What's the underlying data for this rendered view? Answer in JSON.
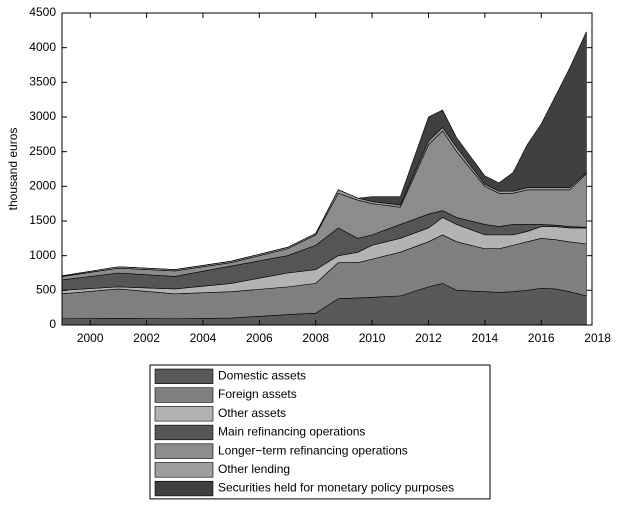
{
  "chart_data": {
    "type": "stacked_area",
    "y_label": "thousand euros",
    "x": [
      1999,
      2001,
      2003,
      2005,
      2007,
      2008,
      2008.8,
      2009.5,
      2010,
      2011,
      2012,
      2012.5,
      2013,
      2014,
      2014.5,
      2015,
      2015.5,
      2016,
      2016.5,
      2017,
      2017.6
    ],
    "series": [
      {
        "name": "Domestic assets",
        "color": "#595959",
        "values": [
          90,
          95,
          90,
          100,
          150,
          170,
          380,
          390,
          400,
          420,
          550,
          600,
          500,
          480,
          470,
          480,
          500,
          530,
          520,
          480,
          420
        ]
      },
      {
        "name": "Foreign assets",
        "color": "#7f7f7f",
        "values": [
          360,
          425,
          360,
          380,
          400,
          430,
          520,
          510,
          550,
          630,
          650,
          700,
          700,
          620,
          630,
          670,
          700,
          720,
          710,
          720,
          750
        ]
      },
      {
        "name": "Other assets",
        "color": "#b3b3b3",
        "values": [
          50,
          30,
          70,
          120,
          200,
          200,
          100,
          150,
          200,
          200,
          200,
          250,
          250,
          200,
          200,
          150,
          150,
          170,
          190,
          200,
          230
        ]
      },
      {
        "name": "Main refinancing operations",
        "color": "#555555",
        "values": [
          150,
          200,
          180,
          250,
          250,
          350,
          400,
          200,
          150,
          200,
          200,
          100,
          100,
          150,
          120,
          150,
          100,
          30,
          20,
          20,
          10
        ]
      },
      {
        "name": "Longer−term refinancing operations",
        "color": "#8c8c8c",
        "values": [
          50,
          70,
          80,
          50,
          100,
          150,
          500,
          550,
          450,
          250,
          1000,
          1150,
          950,
          550,
          480,
          450,
          500,
          500,
          510,
          530,
          770
        ]
      },
      {
        "name": "Other lending",
        "color": "#9e9e9e",
        "values": [
          10,
          20,
          20,
          20,
          20,
          20,
          50,
          30,
          30,
          30,
          50,
          50,
          60,
          30,
          30,
          30,
          30,
          30,
          30,
          30,
          20
        ]
      },
      {
        "name": "Securities held for monetary policy purposes",
        "color": "#404040",
        "values": [
          0,
          0,
          0,
          0,
          0,
          0,
          0,
          0,
          70,
          120,
          350,
          250,
          140,
          120,
          120,
          270,
          620,
          920,
          1320,
          1720,
          2030
        ]
      }
    ],
    "xlim": [
      1999,
      2017.8
    ],
    "xticks": [
      2000,
      2002,
      2004,
      2006,
      2008,
      2010,
      2012,
      2014,
      2016,
      2018
    ],
    "ylim": [
      0,
      4500
    ],
    "yticks": [
      0,
      500,
      1000,
      1500,
      2000,
      2500,
      3000,
      3500,
      4000,
      4500
    ],
    "legend": "bottom"
  }
}
